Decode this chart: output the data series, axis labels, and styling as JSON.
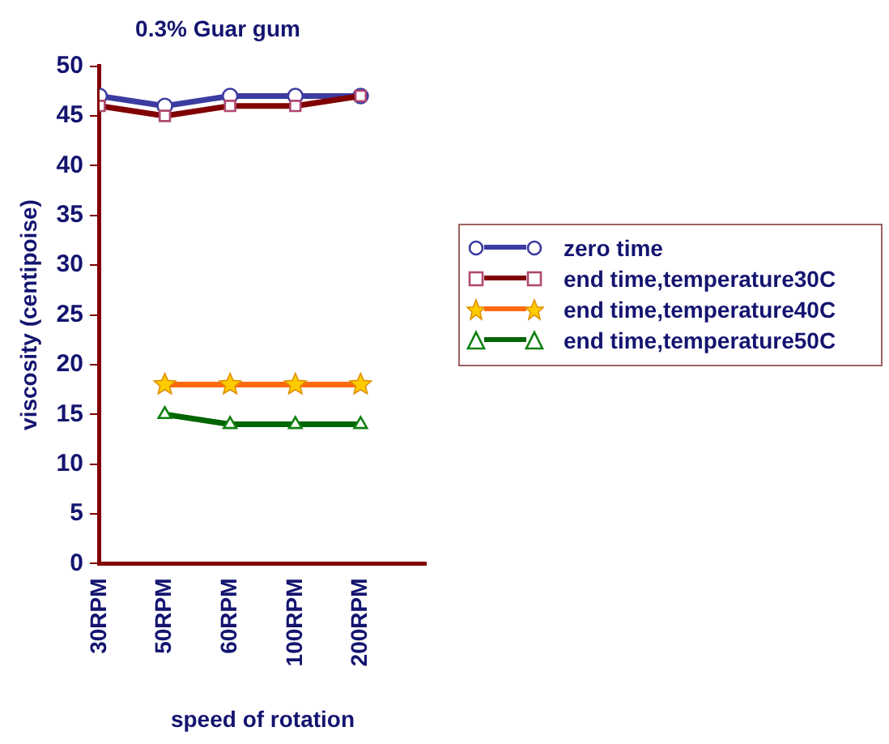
{
  "chart_data": {
    "type": "line",
    "title": "0.3% Guar gum",
    "xlabel": "speed of rotation",
    "ylabel": "viscosity (centipoise)",
    "categories": [
      "30RPM",
      "50RPM",
      "60RPM",
      "100RPM",
      "200RPM"
    ],
    "series": [
      {
        "name": "zero time",
        "color": "#3c3ca0",
        "marker": "circle",
        "values": [
          47,
          46,
          47,
          47,
          47
        ]
      },
      {
        "name": "end time,temperature30C",
        "color": "#800000",
        "marker": "square",
        "values": [
          46,
          45,
          46,
          46,
          47
        ]
      },
      {
        "name": "end time,temperature40C",
        "color": "#ff6a10",
        "marker": "star",
        "values": [
          null,
          18,
          18,
          18,
          18
        ]
      },
      {
        "name": "end time,temperature50C",
        "color": "#006400",
        "marker": "triangle",
        "values": [
          null,
          15,
          14,
          14,
          14
        ]
      }
    ],
    "ylim": [
      0,
      50
    ],
    "yticks": [
      0,
      5,
      10,
      15,
      20,
      25,
      30,
      35,
      40,
      45,
      50
    ],
    "grid": false,
    "legend": "right",
    "line_style": "solid"
  }
}
